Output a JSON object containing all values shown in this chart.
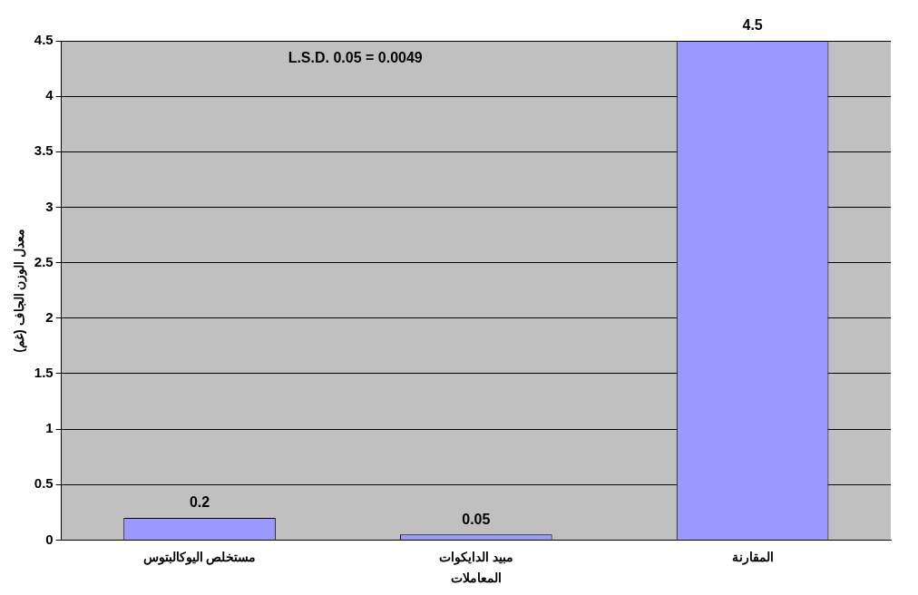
{
  "chart_data": {
    "type": "bar",
    "categories": [
      "مستخلص اليوكالبتوس",
      "مبيد الدايكوات",
      "المقارنة"
    ],
    "values": [
      0.2,
      0.05,
      4.5
    ],
    "color": "#9999ff",
    "xlabel": "المعاملات",
    "ylabel": "معدل الوزن الجاف (غم)",
    "ylim": [
      0,
      4.5
    ],
    "yticks": [
      0,
      0.5,
      1,
      1.5,
      2,
      2.5,
      3,
      3.5,
      4,
      4.5
    ],
    "grid": "y",
    "legend": false,
    "data_labels": true,
    "annotations": [
      "L.S.D. 0.05 = 0.0049"
    ]
  }
}
